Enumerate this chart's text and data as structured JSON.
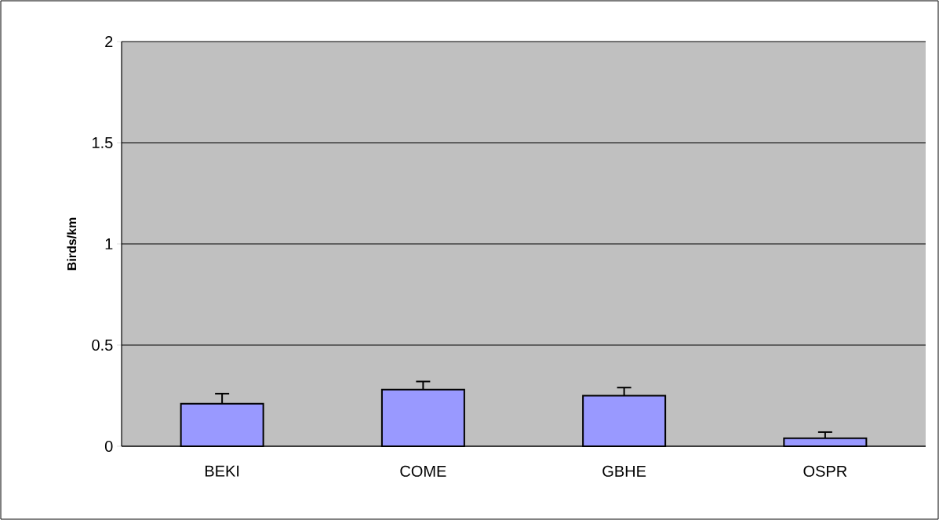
{
  "chart_data": {
    "type": "bar",
    "ylabel": "Birds/km",
    "categories": [
      "BEKI",
      "COME",
      "GBHE",
      "OSPR"
    ],
    "values": [
      0.21,
      0.28,
      0.25,
      0.04
    ],
    "errors": [
      [
        0.21,
        0.26
      ],
      [
        0.28,
        0.32
      ],
      [
        0.25,
        0.29
      ],
      [
        0.04,
        0.07
      ]
    ],
    "color": "#9999ff",
    "ylim": [
      0,
      2
    ],
    "yticks": [
      0,
      0.5,
      1,
      1.5,
      2
    ],
    "grid": "y"
  }
}
